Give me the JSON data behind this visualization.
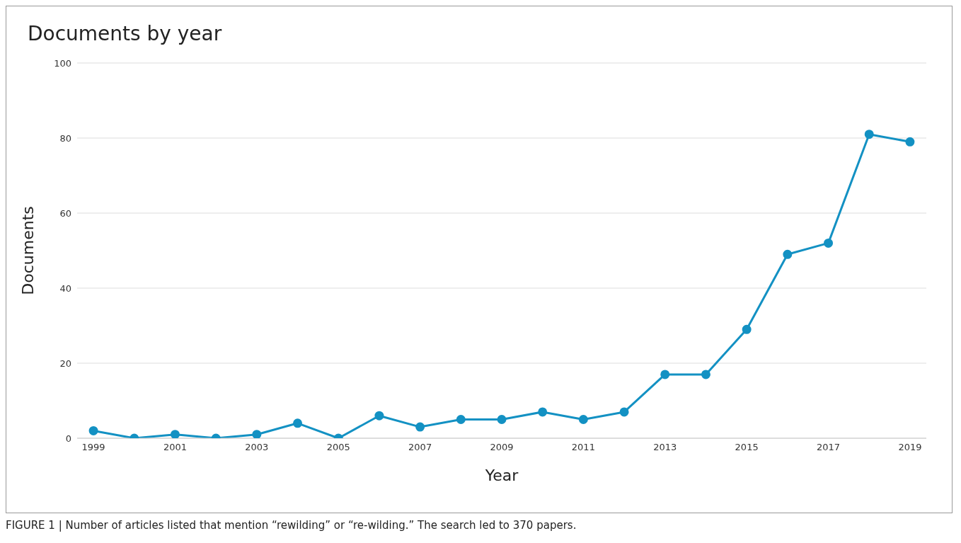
{
  "chart_data": {
    "type": "line",
    "title": "Documents by year",
    "xlabel": "Year",
    "ylabel": "Documents",
    "x": [
      1999,
      2000,
      2001,
      2002,
      2003,
      2004,
      2005,
      2006,
      2007,
      2008,
      2009,
      2010,
      2011,
      2012,
      2013,
      2014,
      2015,
      2016,
      2017,
      2018,
      2019
    ],
    "series": [
      {
        "color": "#1391c3",
        "values": [
          2,
          0,
          1,
          0,
          1,
          4,
          0,
          6,
          3,
          5,
          5,
          7,
          5,
          7,
          17,
          17,
          29,
          49,
          52,
          81,
          79
        ]
      }
    ],
    "xlim": [
      1998.6,
      2019.4
    ],
    "xticks": [
      1999,
      2001,
      2003,
      2005,
      2007,
      2009,
      2011,
      2013,
      2015,
      2017,
      2019
    ],
    "ylim": [
      0,
      100
    ],
    "yticks": [
      0,
      20,
      40,
      60,
      80,
      100
    ],
    "grid": "y",
    "marker": "circle",
    "line_style": "solid",
    "legend": false,
    "annotations": [
      "FIGURE 1 | Number of articles listed that mention “rewilding” or “re-wilding.” The search led to 370 papers."
    ]
  }
}
